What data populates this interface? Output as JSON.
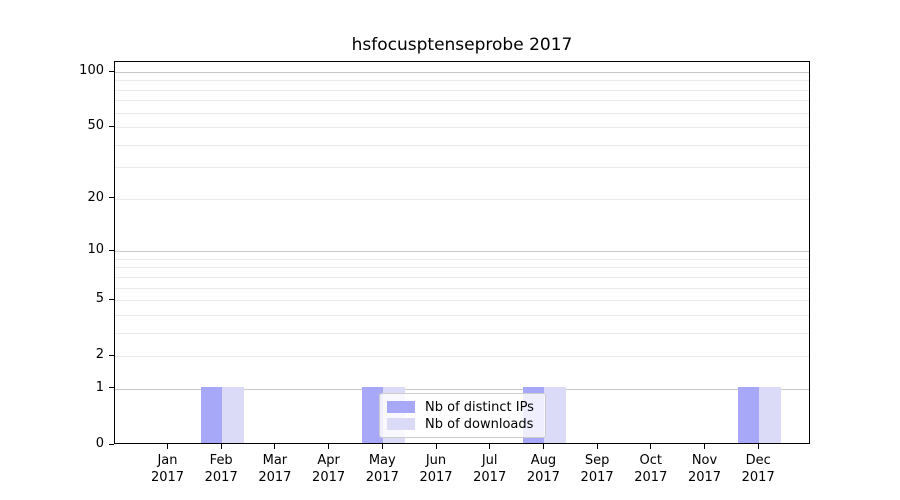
{
  "title": "hsfocusptenseprobe 2017",
  "chart_data": {
    "type": "bar",
    "title": "hsfocusptenseprobe 2017",
    "x_year": "2017",
    "categories": [
      "Jan",
      "Feb",
      "Mar",
      "Apr",
      "May",
      "Jun",
      "Jul",
      "Aug",
      "Sep",
      "Oct",
      "Nov",
      "Dec"
    ],
    "series": [
      {
        "name": "Nb of distinct IPs",
        "color": "#a8a8f8",
        "values": [
          0,
          1,
          0,
          0,
          1,
          0,
          0,
          1,
          0,
          0,
          0,
          1
        ]
      },
      {
        "name": "Nb of downloads",
        "color": "#dbdbf7",
        "values": [
          0,
          1,
          0,
          0,
          1,
          0,
          0,
          1,
          0,
          0,
          0,
          1
        ]
      }
    ],
    "y_scale": "log1p",
    "ylim": [
      0,
      112
    ],
    "y_major_ticks": [
      0,
      1,
      2,
      5,
      10,
      20,
      50,
      100
    ],
    "y_grid_major": [
      1,
      10,
      100
    ],
    "y_grid_minor": [
      2,
      3,
      4,
      5,
      6,
      7,
      8,
      9,
      20,
      30,
      40,
      50,
      60,
      70,
      80,
      90
    ],
    "grid": true,
    "legend_position": "lower center"
  },
  "colors": {
    "bar_distinct_ips": "#a8a8f8",
    "bar_downloads": "#dbdbf7",
    "grid_major": "#c8c8c8",
    "grid_minor": "#ebebeb",
    "axis": "#000000",
    "legend_border": "#cccccc"
  }
}
